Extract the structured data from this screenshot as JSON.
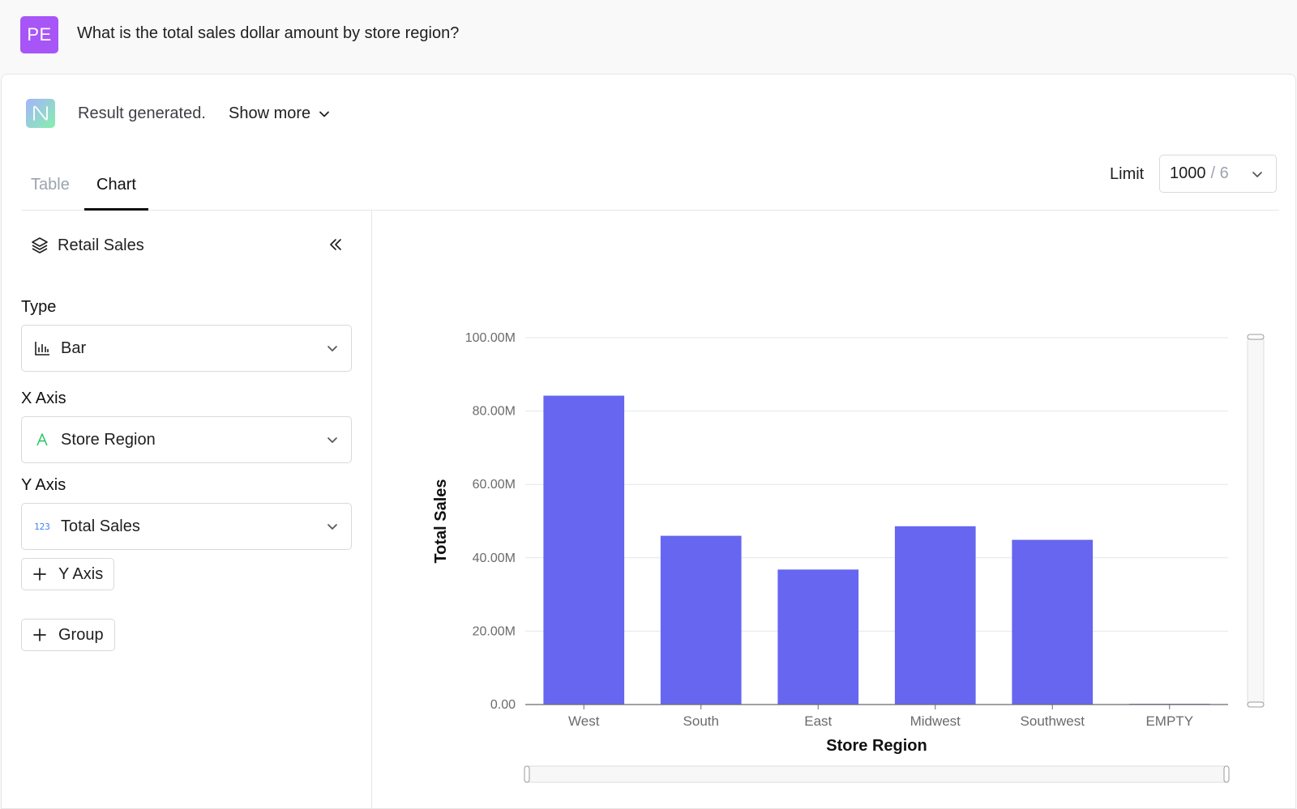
{
  "header": {
    "avatar_initials": "PE",
    "question": "What is the total sales dollar amount by store region?"
  },
  "result": {
    "status_text": "Result generated.",
    "show_more_label": "Show more"
  },
  "tabs": [
    {
      "label": "Table",
      "active": false
    },
    {
      "label": "Chart",
      "active": true
    }
  ],
  "sidebar": {
    "dataset_name": "Retail Sales",
    "type_label": "Type",
    "type_value": "Bar",
    "x_axis_label": "X Axis",
    "x_axis_value": "Store Region",
    "y_axis_label": "Y Axis",
    "y_axis_value": "Total Sales",
    "y_axis_type_badge": "123",
    "add_y_axis_label": "Y Axis",
    "add_group_label": "Group"
  },
  "limit": {
    "label": "Limit",
    "value": "1000",
    "total": "/ 6"
  },
  "colors": {
    "bar": "#6666f0",
    "avatar": "#a855f7",
    "string_icon": "#22c55e",
    "number_icon": "#3b82f6"
  },
  "chart_data": {
    "type": "bar",
    "categories": [
      "West",
      "South",
      "East",
      "Midwest",
      "Southwest",
      "EMPTY"
    ],
    "values": [
      84.2,
      46.0,
      36.8,
      48.6,
      44.9,
      0.2
    ],
    "value_unit": "M",
    "xlabel": "Store Region",
    "ylabel": "Total Sales",
    "ylim": [
      0,
      100
    ],
    "y_ticks": [
      0,
      20,
      40,
      60,
      80,
      100
    ],
    "y_tick_labels": [
      "0.00",
      "20.00M",
      "40.00M",
      "60.00M",
      "80.00M",
      "100.00M"
    ],
    "grid": true,
    "zoom_sliders": true
  }
}
